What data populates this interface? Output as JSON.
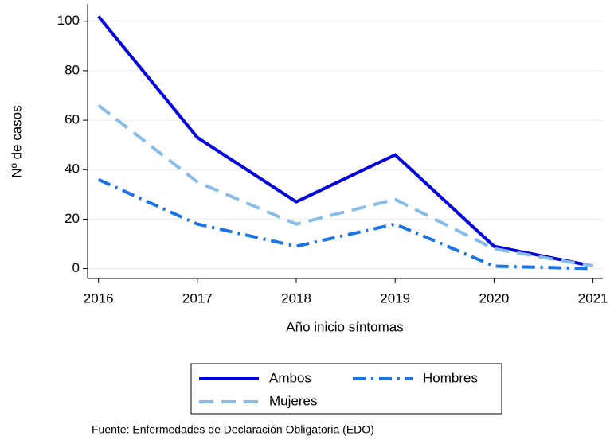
{
  "chart_data": {
    "type": "line",
    "x": [
      2016,
      2017,
      2018,
      2019,
      2020,
      2021
    ],
    "series": [
      {
        "name": "Ambos",
        "color": "#0000e0",
        "style": "solid",
        "values": [
          102,
          53,
          27,
          46,
          9,
          1
        ]
      },
      {
        "name": "Hombres",
        "color": "#1a73e8",
        "style": "dashdot",
        "values": [
          36,
          18,
          9,
          18,
          1,
          0
        ]
      },
      {
        "name": "Mujeres",
        "color": "#87bde8",
        "style": "dash",
        "values": [
          66,
          35,
          18,
          28,
          8,
          1
        ]
      }
    ],
    "xlabel": "Año inicio síntomas",
    "ylabel": "Nº de casos",
    "xlim": [
      2015.89,
      2021.1
    ],
    "xticks": [
      2016,
      2017,
      2018,
      2019,
      2020,
      2021
    ],
    "ylim": [
      -4,
      107
    ],
    "yticks": [
      0,
      20,
      40,
      60,
      80,
      100
    ],
    "grid": true,
    "legend": "bottom",
    "note": "Fuente: Enfermedades de Declaración Obligatoria (EDO)"
  }
}
